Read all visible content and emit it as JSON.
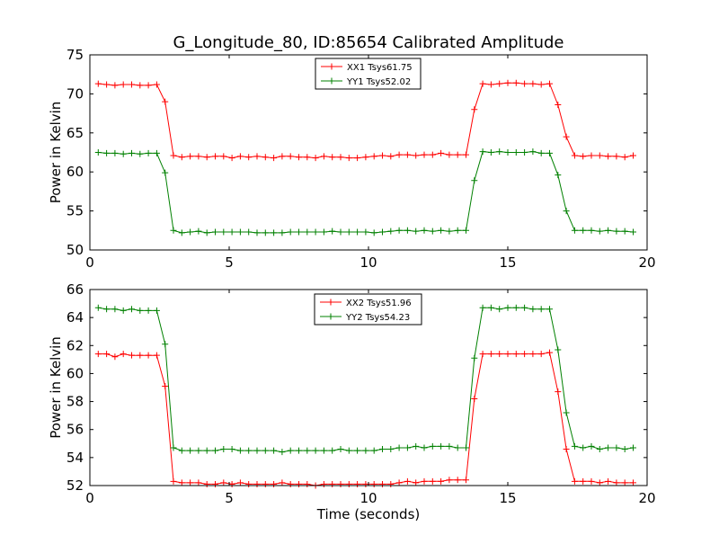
{
  "figure": {
    "title": "G_Longitude_80, ID:85654 Calibrated Amplitude"
  },
  "chart_data": [
    {
      "type": "line",
      "title": "G_Longitude_80, ID:85654 Calibrated Amplitude",
      "xlabel": "",
      "ylabel": "Power in Kelvin",
      "xlim": [
        0,
        20
      ],
      "ylim": [
        50,
        75
      ],
      "xticks": [
        0,
        5,
        10,
        15,
        20
      ],
      "yticks": [
        50,
        55,
        60,
        65,
        70,
        75
      ],
      "grid": false,
      "legend_position": "top-center",
      "x": [
        0.3,
        0.6,
        0.9,
        1.2,
        1.5,
        1.8,
        2.1,
        2.4,
        2.7,
        3.0,
        3.3,
        3.6,
        3.9,
        4.2,
        4.5,
        4.8,
        5.1,
        5.4,
        5.7,
        6.0,
        6.3,
        6.6,
        6.9,
        7.2,
        7.5,
        7.8,
        8.1,
        8.4,
        8.7,
        9.0,
        9.3,
        9.6,
        9.9,
        10.2,
        10.5,
        10.8,
        11.1,
        11.4,
        11.7,
        12.0,
        12.3,
        12.6,
        12.9,
        13.2,
        13.5,
        13.8,
        14.1,
        14.4,
        14.7,
        15.0,
        15.3,
        15.6,
        15.9,
        16.2,
        16.5,
        16.8,
        17.1,
        17.4,
        17.7,
        18.0,
        18.3,
        18.6,
        18.9,
        19.2,
        19.5
      ],
      "series": [
        {
          "name": "XX1 Tsys61.75",
          "color": "#ff0000",
          "values": [
            71.3,
            71.2,
            71.1,
            71.2,
            71.2,
            71.1,
            71.1,
            71.2,
            69.0,
            62.1,
            61.9,
            62.0,
            62.0,
            61.9,
            62.0,
            62.0,
            61.8,
            62.0,
            61.9,
            62.0,
            61.9,
            61.8,
            62.0,
            62.0,
            61.9,
            61.9,
            61.8,
            62.0,
            61.9,
            61.9,
            61.8,
            61.8,
            61.9,
            62.0,
            62.1,
            62.0,
            62.2,
            62.2,
            62.1,
            62.2,
            62.2,
            62.4,
            62.2,
            62.2,
            62.2,
            68.0,
            71.3,
            71.2,
            71.3,
            71.4,
            71.4,
            71.3,
            71.3,
            71.2,
            71.3,
            68.6,
            64.5,
            62.1,
            62.0,
            62.1,
            62.1,
            62.0,
            62.0,
            61.9,
            62.1
          ]
        },
        {
          "name": "YY1 Tsys52.02",
          "color": "#008000",
          "values": [
            62.5,
            62.4,
            62.4,
            62.3,
            62.4,
            62.3,
            62.4,
            62.4,
            59.9,
            52.5,
            52.2,
            52.3,
            52.4,
            52.2,
            52.3,
            52.3,
            52.3,
            52.3,
            52.3,
            52.2,
            52.2,
            52.2,
            52.2,
            52.3,
            52.3,
            52.3,
            52.3,
            52.3,
            52.4,
            52.3,
            52.3,
            52.3,
            52.3,
            52.2,
            52.3,
            52.4,
            52.5,
            52.5,
            52.4,
            52.5,
            52.4,
            52.5,
            52.4,
            52.5,
            52.5,
            58.9,
            62.6,
            62.5,
            62.6,
            62.5,
            62.5,
            62.5,
            62.6,
            62.4,
            62.4,
            59.6,
            55.0,
            52.5,
            52.5,
            52.5,
            52.4,
            52.5,
            52.4,
            52.4,
            52.3
          ]
        }
      ]
    },
    {
      "type": "line",
      "title": "",
      "xlabel": "Time (seconds)",
      "ylabel": "Power in Kelvin",
      "xlim": [
        0,
        20
      ],
      "ylim": [
        52,
        66
      ],
      "xticks": [
        0,
        5,
        10,
        15,
        20
      ],
      "yticks": [
        52,
        54,
        56,
        58,
        60,
        62,
        64,
        66
      ],
      "grid": false,
      "legend_position": "top-center",
      "x": [
        0.3,
        0.6,
        0.9,
        1.2,
        1.5,
        1.8,
        2.1,
        2.4,
        2.7,
        3.0,
        3.3,
        3.6,
        3.9,
        4.2,
        4.5,
        4.8,
        5.1,
        5.4,
        5.7,
        6.0,
        6.3,
        6.6,
        6.9,
        7.2,
        7.5,
        7.8,
        8.1,
        8.4,
        8.7,
        9.0,
        9.3,
        9.6,
        9.9,
        10.2,
        10.5,
        10.8,
        11.1,
        11.4,
        11.7,
        12.0,
        12.3,
        12.6,
        12.9,
        13.2,
        13.5,
        13.8,
        14.1,
        14.4,
        14.7,
        15.0,
        15.3,
        15.6,
        15.9,
        16.2,
        16.5,
        16.8,
        17.1,
        17.4,
        17.7,
        18.0,
        18.3,
        18.6,
        18.9,
        19.2,
        19.5
      ],
      "series": [
        {
          "name": "XX2 Tsys51.96",
          "color": "#ff0000",
          "values": [
            61.4,
            61.4,
            61.2,
            61.4,
            61.3,
            61.3,
            61.3,
            61.3,
            59.1,
            52.3,
            52.2,
            52.2,
            52.2,
            52.1,
            52.1,
            52.2,
            52.1,
            52.2,
            52.1,
            52.1,
            52.1,
            52.1,
            52.2,
            52.1,
            52.1,
            52.1,
            52.0,
            52.1,
            52.1,
            52.1,
            52.1,
            52.1,
            52.1,
            52.1,
            52.1,
            52.1,
            52.2,
            52.3,
            52.2,
            52.3,
            52.3,
            52.3,
            52.4,
            52.4,
            52.4,
            58.2,
            61.4,
            61.4,
            61.4,
            61.4,
            61.4,
            61.4,
            61.4,
            61.4,
            61.5,
            58.7,
            54.6,
            52.3,
            52.3,
            52.3,
            52.2,
            52.3,
            52.2,
            52.2,
            52.2
          ]
        },
        {
          "name": "YY2 Tsys54.23",
          "color": "#008000",
          "values": [
            64.7,
            64.6,
            64.6,
            64.5,
            64.6,
            64.5,
            64.5,
            64.5,
            62.1,
            54.7,
            54.5,
            54.5,
            54.5,
            54.5,
            54.5,
            54.6,
            54.6,
            54.5,
            54.5,
            54.5,
            54.5,
            54.5,
            54.4,
            54.5,
            54.5,
            54.5,
            54.5,
            54.5,
            54.5,
            54.6,
            54.5,
            54.5,
            54.5,
            54.5,
            54.6,
            54.6,
            54.7,
            54.7,
            54.8,
            54.7,
            54.8,
            54.8,
            54.8,
            54.7,
            54.7,
            61.1,
            64.7,
            64.7,
            64.6,
            64.7,
            64.7,
            64.7,
            64.6,
            64.6,
            64.6,
            61.7,
            57.2,
            54.8,
            54.7,
            54.8,
            54.6,
            54.7,
            54.7,
            54.6,
            54.7
          ]
        }
      ]
    }
  ]
}
